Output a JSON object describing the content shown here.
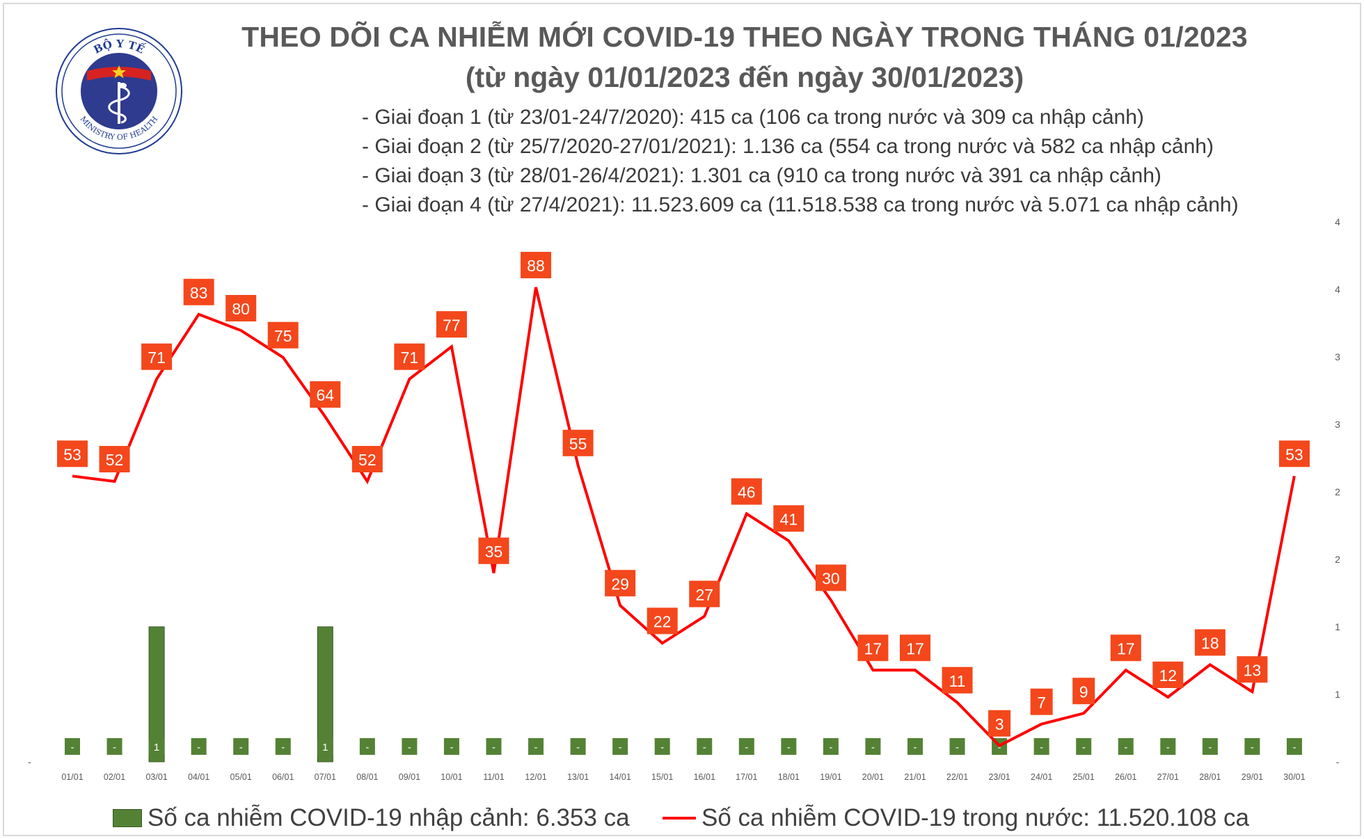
{
  "header": {
    "title": "THEO DÕI CA NHIỄM MỚI COVID-19 THEO NGÀY TRONG THÁNG 01/2023",
    "subtitle": "(từ ngày 01/01/2023 đến ngày 30/01/2023)",
    "phases": [
      "- Giai đoạn 1 (từ 23/01-24/7/2020): 415 ca (106 ca trong nước và 309 ca nhập cảnh)",
      "- Giai đoạn 2 (từ 25/7/2020-27/01/2021): 1.136 ca (554 ca trong nước và 582 ca nhập cảnh)",
      "- Giai đoạn 3 (từ 28/01-26/4/2021): 1.301 ca (910 ca trong nước và 391 ca nhập cảnh)",
      "- Giai đoạn 4 (từ 27/4/2021): 11.523.609 ca (11.518.538 ca trong nước và 5.071 ca nhập cảnh)"
    ]
  },
  "logo": {
    "top_text": "BỘ Y TẾ",
    "bottom_text": "MINISTRY OF HEALTH"
  },
  "legend": {
    "bar_label": "Số ca nhiễm COVID-19 nhập cảnh: 6.353 ca",
    "line_label": "Số ca nhiễm COVID-19 trong nước: 11.520.108 ca"
  },
  "colors": {
    "line": "#ff0000",
    "label_box": "#f4471c",
    "bar": "#548235",
    "title": "#595959"
  },
  "chart_data": {
    "type": "bar+line",
    "categories": [
      "01/01",
      "02/01",
      "03/01",
      "04/01",
      "05/01",
      "06/01",
      "07/01",
      "08/01",
      "09/01",
      "10/01",
      "11/01",
      "12/01",
      "13/01",
      "14/01",
      "15/01",
      "16/01",
      "17/01",
      "18/01",
      "19/01",
      "20/01",
      "21/01",
      "22/01",
      "23/01",
      "24/01",
      "25/01",
      "26/01",
      "27/01",
      "28/01",
      "29/01",
      "30/01"
    ],
    "series": [
      {
        "name": "Số ca nhiễm COVID-19 nhập cảnh",
        "type": "bar",
        "axis": "right",
        "values": [
          0,
          0,
          1,
          0,
          0,
          0,
          1,
          0,
          0,
          0,
          0,
          0,
          0,
          0,
          0,
          0,
          0,
          0,
          0,
          0,
          0,
          0,
          0,
          0,
          0,
          0,
          0,
          0,
          0,
          0
        ],
        "labels": [
          "-",
          "-",
          "1",
          "-",
          "-",
          "-",
          "1",
          "-",
          "-",
          "-",
          "-",
          "-",
          "-",
          "-",
          "-",
          "-",
          "-",
          "-",
          "-",
          "-",
          "-",
          "-",
          "-",
          "-",
          "-",
          "-",
          "-",
          "-",
          "-",
          "-"
        ]
      },
      {
        "name": "Số ca nhiễm COVID-19 trong nước",
        "type": "line",
        "axis": "left",
        "values": [
          53,
          52,
          71,
          83,
          80,
          75,
          64,
          52,
          71,
          77,
          35,
          88,
          55,
          29,
          22,
          27,
          46,
          41,
          30,
          17,
          17,
          11,
          3,
          7,
          9,
          17,
          12,
          18,
          13,
          53
        ]
      }
    ],
    "right_axis": {
      "ticks": [
        "-",
        "1",
        "1",
        "2",
        "2",
        "3",
        "3",
        "4",
        "4"
      ],
      "tick_values": [
        0,
        0.5,
        1,
        1.5,
        2,
        2.5,
        3,
        3.5,
        4
      ]
    },
    "grid": false
  }
}
